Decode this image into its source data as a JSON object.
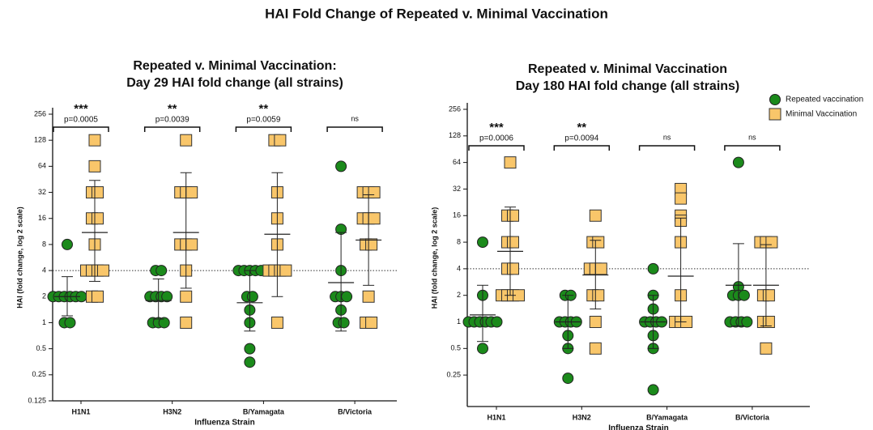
{
  "title": "HAI Fold Change of Repeated v. Minimal Vaccination",
  "chart_data": [
    {
      "type": "dot",
      "title": [
        "Repeated v. Minimal Vaccination:",
        "Day 29 HAI fold change (all strains)"
      ],
      "ylabel": "HAI (fold change, log 2 scale)",
      "xlabel": "Influenza Strain",
      "log_base": 2,
      "refline": 4,
      "categories": [
        "H1N1",
        "H3N2",
        "B/Yamagata",
        "B/Victoria"
      ],
      "ylim": [
        0.125,
        256
      ],
      "yticks": [
        0.125,
        0.25,
        0.5,
        1,
        2,
        4,
        8,
        16,
        32,
        64,
        128,
        256
      ],
      "series": [
        {
          "color": "#1b8a1b",
          "marker": "circle",
          "values": [
            [
              8,
              2,
              2,
              2,
              2,
              2,
              2,
              1,
              1
            ],
            [
              4,
              4,
              2,
              2,
              2,
              2,
              1,
              1,
              1
            ],
            [
              4,
              4,
              4,
              4,
              4,
              2,
              2,
              1.4,
              1,
              0.5,
              0.35
            ],
            [
              64,
              12,
              4,
              2,
              2,
              2,
              1.4,
              1,
              1
            ]
          ],
          "mean": [
            2,
            1.8,
            1.7,
            2.9
          ],
          "sd_range": [
            [
              1.2,
              3.4
            ],
            [
              1.1,
              3.2
            ],
            [
              0.8,
              4
            ],
            [
              0.8,
              11
            ]
          ]
        },
        {
          "color": "#f9c66a",
          "marker": "square",
          "values": [
            [
              128,
              64,
              32,
              32,
              16,
              16,
              8,
              4,
              4,
              4,
              4,
              2,
              2
            ],
            [
              128,
              32,
              32,
              32,
              8,
              8,
              8,
              4,
              2,
              1
            ],
            [
              128,
              128,
              32,
              16,
              8,
              4,
              4,
              4,
              4,
              1
            ],
            [
              32,
              32,
              32,
              16,
              16,
              16,
              8,
              8,
              2,
              1,
              1
            ]
          ],
          "mean": [
            11,
            11,
            10.5,
            9
          ],
          "sd_range": [
            [
              3,
              44
            ],
            [
              2.5,
              54
            ],
            [
              2,
              54
            ],
            [
              2.7,
              30
            ]
          ]
        }
      ],
      "significance": [
        {
          "stars": "***",
          "p": "p=0.0005"
        },
        {
          "stars": "**",
          "p": "p=0.0039"
        },
        {
          "stars": "**",
          "p": "p=0.0059"
        },
        {
          "stars": "ns"
        }
      ]
    },
    {
      "type": "dot",
      "title": [
        "Repeated v. Minimal Vaccination",
        "Day 180 HAI fold change (all strains)"
      ],
      "ylabel": "HAI (fold change, log 2 scale)",
      "xlabel": "Influenza Strain",
      "log_base": 2,
      "refline": 4,
      "legend": "upper right",
      "categories": [
        "H1N1",
        "H3N2",
        "B/Yamagata",
        "B/Victoria"
      ],
      "ylim": [
        0.11,
        256
      ],
      "yticks": [
        0.25,
        0.5,
        1,
        2,
        4,
        8,
        16,
        32,
        64,
        128,
        256
      ],
      "series": [
        {
          "name": "Repeated vaccination",
          "color": "#1b8a1b",
          "marker": "circle",
          "values": [
            [
              8,
              2,
              1,
              1,
              1,
              1,
              1,
              1,
              0.5
            ],
            [
              2,
              2,
              1,
              1,
              1,
              1,
              0.7,
              0.5,
              0.23
            ],
            [
              4,
              2,
              1.4,
              1,
              1,
              1,
              1,
              0.7,
              0.5,
              0.17
            ],
            [
              64,
              2.5,
              2,
              2,
              2,
              1,
              1,
              1,
              1
            ]
          ],
          "mean": [
            1.2,
            1,
            1,
            2.6
          ],
          "sd_range": [
            [
              0.6,
              2.6
            ],
            [
              0.5,
              2
            ],
            [
              0.5,
              2
            ],
            [
              0.9,
              7.7
            ]
          ]
        },
        {
          "name": "Minimal Vaccination",
          "color": "#f9c66a",
          "marker": "square",
          "values": [
            [
              64,
              16,
              16,
              8,
              8,
              4,
              4,
              2,
              2,
              2,
              2
            ],
            [
              16,
              8,
              8,
              4,
              4,
              4,
              2,
              2,
              1,
              0.5
            ],
            [
              32,
              25,
              16,
              14,
              8,
              2,
              1,
              1,
              1
            ],
            [
              8,
              8,
              8,
              2,
              2,
              1,
              1,
              0.5
            ]
          ],
          "mean": [
            6.3,
            3.4,
            3.3,
            2.6
          ],
          "sd_range": [
            [
              2,
              20
            ],
            [
              1.4,
              8.4
            ],
            [
              1,
              15
            ],
            [
              0.9,
              7.5
            ]
          ]
        }
      ],
      "significance": [
        {
          "stars": "***",
          "p": "p=0.0006"
        },
        {
          "stars": "**",
          "p": "p=0.0094"
        },
        {
          "stars": "ns"
        },
        {
          "stars": "ns"
        }
      ]
    }
  ]
}
